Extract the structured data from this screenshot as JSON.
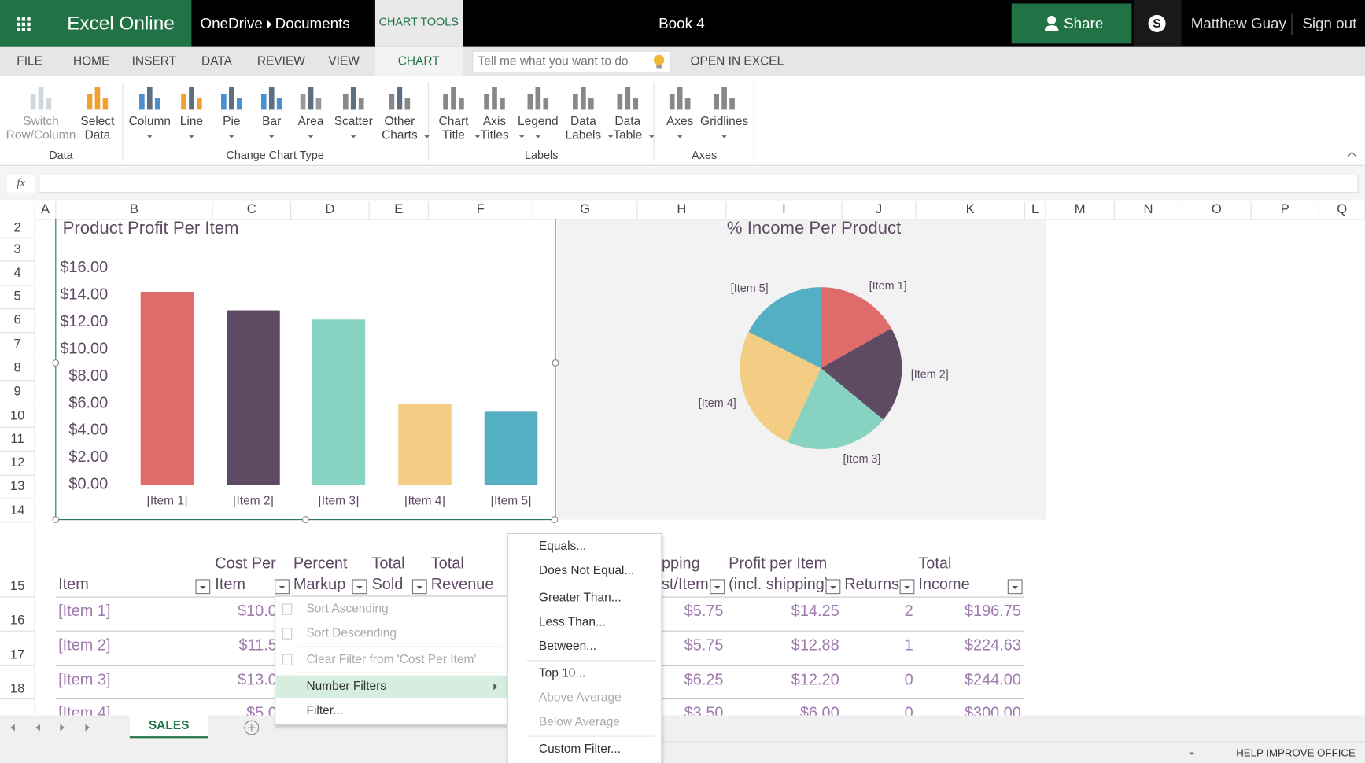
{
  "topbar": {
    "app_name": "Excel Online",
    "location": [
      "OneDrive",
      "Documents"
    ],
    "context_tab": "CHART TOOLS",
    "document_title": "Book 4",
    "share": "Share",
    "user_name": "Matthew Guay",
    "sign_out": "Sign out"
  },
  "tabs": [
    "FILE",
    "HOME",
    "INSERT",
    "DATA",
    "REVIEW",
    "VIEW",
    "CHART"
  ],
  "search_placeholder": "Tell me what you want to do",
  "open_in_excel": "OPEN IN EXCEL",
  "ribbon": {
    "groups": [
      {
        "label": "Data",
        "buttons": [
          [
            "Switch",
            "Row/Column"
          ],
          [
            "Select",
            "Data"
          ]
        ]
      },
      {
        "label": "Change Chart Type",
        "buttons": [
          [
            "Column"
          ],
          [
            "Line"
          ],
          [
            "Pie"
          ],
          [
            "Bar"
          ],
          [
            "Area"
          ],
          [
            "Scatter"
          ],
          [
            "Other",
            "Charts"
          ]
        ]
      },
      {
        "label": "Labels",
        "buttons": [
          [
            "Chart",
            "Title"
          ],
          [
            "Axis",
            "Titles"
          ],
          [
            "Legend"
          ],
          [
            "Data",
            "Labels"
          ],
          [
            "Data",
            "Table"
          ]
        ]
      },
      {
        "label": "Axes",
        "buttons": [
          [
            "Axes"
          ],
          [
            "Gridlines"
          ]
        ]
      }
    ]
  },
  "formula_bar": {
    "label": "fx"
  },
  "columns": [
    "A",
    "B",
    "C",
    "D",
    "E",
    "F",
    "G",
    "H",
    "I",
    "J",
    "K",
    "L",
    "M",
    "N",
    "O",
    "P",
    "Q"
  ],
  "rows": [
    "2",
    "3",
    "4",
    "5",
    "6",
    "7",
    "8",
    "9",
    "10",
    "11",
    "12",
    "13",
    "14",
    "15",
    "16",
    "17",
    "18"
  ],
  "bar_chart": {
    "type": "bar",
    "title": "Product Profit Per Item",
    "categories": [
      "[Item 1]",
      "[Item 2]",
      "[Item 3]",
      "[Item 4]",
      "[Item 5]"
    ],
    "values": [
      14.25,
      12.88,
      12.2,
      6.0,
      5.4
    ],
    "colors": [
      "#e06b6b",
      "#5e4b63",
      "#87d2c0",
      "#f2cd83",
      "#55afc2"
    ],
    "ylim": [
      0,
      16
    ],
    "yticks": [
      {
        "value": 0,
        "label": "$0.00"
      },
      {
        "value": 2,
        "label": "$2.00"
      },
      {
        "value": 4,
        "label": "$4.00"
      },
      {
        "value": 6,
        "label": "$6.00"
      },
      {
        "value": 8,
        "label": "$8.00"
      },
      {
        "value": 10,
        "label": "$10.00"
      },
      {
        "value": 12,
        "label": "$12.00"
      },
      {
        "value": 14,
        "label": "$14.00"
      },
      {
        "value": 16,
        "label": "$16.00"
      }
    ]
  },
  "pie_chart": {
    "type": "pie",
    "title": "% Income Per Product",
    "categories": [
      "[Item 1]",
      "[Item 2]",
      "[Item 3]",
      "[Item 4]",
      "[Item 5]"
    ],
    "values": [
      16.8,
      19.2,
      20.8,
      25.6,
      17.6
    ],
    "colors": [
      "#e06b6b",
      "#5e4b63",
      "#87d2c0",
      "#f2cd83",
      "#55afc2"
    ]
  },
  "table": {
    "headers": [
      [
        "Item"
      ],
      [
        "Cost Per",
        "Item"
      ],
      [
        "Percent",
        "Markup"
      ],
      [
        "Total",
        "Sold"
      ],
      [
        "Total",
        "Revenue"
      ],
      [
        "pping",
        "st/Item"
      ],
      [
        "Profit per Item",
        "(incl. shipping)"
      ],
      [
        "Returns"
      ],
      [
        "Total",
        "Income"
      ]
    ],
    "rows": [
      [
        "[Item 1]",
        "$10.0",
        "$5.75",
        "$14.25",
        "2",
        "$196.75"
      ],
      [
        "[Item 2]",
        "$11.5",
        "$5.75",
        "$12.88",
        "1",
        "$224.63"
      ],
      [
        "[Item 3]",
        "$13.0",
        "$6.25",
        "$12.20",
        "0",
        "$244.00"
      ],
      [
        "[Item 4]",
        "$5.0",
        "$3.50",
        "$6.00",
        "0",
        "$300.00"
      ]
    ]
  },
  "filter_menu": {
    "items": [
      "Sort Ascending",
      "Sort Descending",
      "Clear Filter from 'Cost Per Item'",
      "Number Filters",
      "Filter..."
    ],
    "submenu": [
      "Equals...",
      "Does Not Equal...",
      "Greater Than...",
      "Less Than...",
      "Between...",
      "Top 10...",
      "Above Average",
      "Below Average",
      "Custom Filter..."
    ]
  },
  "sheet_tab": "SALES",
  "status": "HELP IMPROVE OFFICE"
}
